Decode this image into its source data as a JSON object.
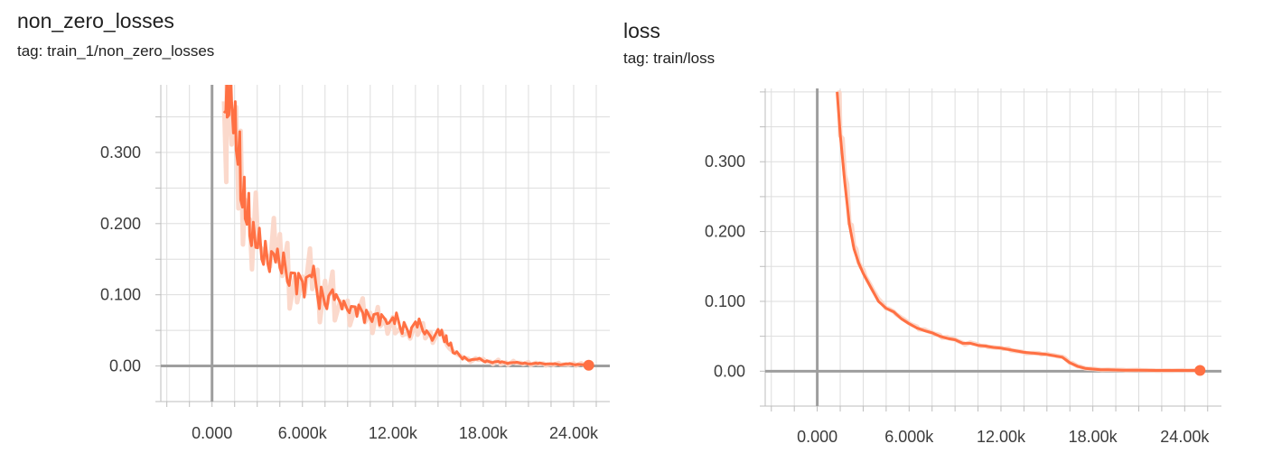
{
  "chart_data": [
    {
      "type": "line",
      "title": "non_zero_losses",
      "subtitle": "tag: train_1/non_zero_losses",
      "xlabel": "",
      "ylabel": "",
      "xlim": [
        -3400,
        26400
      ],
      "ylim": [
        -0.05,
        0.395
      ],
      "x_ticks": [
        0,
        6000,
        12000,
        18000,
        24000
      ],
      "x_tick_labels": [
        "0.000",
        "6.000k",
        "12.00k",
        "18.00k",
        "24.00k"
      ],
      "y_ticks": [
        0,
        0.1,
        0.2,
        0.3
      ],
      "y_tick_labels": [
        "0.00",
        "0.100",
        "0.200",
        "0.300"
      ],
      "grid": true,
      "series_color": "#ff7043",
      "raw_color": "#fbd5c7",
      "series": [
        {
          "x": [
            800,
            1000,
            1300,
            1600,
            1900,
            2200,
            2500,
            2900,
            3300,
            3700,
            4100,
            4500,
            5000,
            5500,
            6000,
            6500,
            7000,
            7500,
            8000,
            8500,
            9000,
            9500,
            10000,
            10500,
            11000,
            11500,
            12000,
            12500,
            13000,
            13500,
            14000,
            14500,
            15000,
            15300,
            15600,
            16000,
            16500,
            17000,
            17500,
            18000,
            18500,
            19000,
            19500,
            20000,
            20500,
            21000,
            21500,
            22000,
            22500,
            23000,
            23500,
            24000,
            24500,
            25000
          ],
          "y": [
            0.39,
            0.37,
            0.34,
            0.29,
            0.25,
            0.22,
            0.2,
            0.18,
            0.155,
            0.15,
            0.16,
            0.14,
            0.13,
            0.12,
            0.11,
            0.125,
            0.1,
            0.09,
            0.1,
            0.085,
            0.075,
            0.08,
            0.07,
            0.065,
            0.07,
            0.06,
            0.065,
            0.055,
            0.05,
            0.06,
            0.045,
            0.04,
            0.05,
            0.04,
            0.03,
            0.02,
            0.012,
            0.008,
            0.01,
            0.007,
            0.005,
            0.006,
            0.004,
            0.005,
            0.004,
            0.003,
            0.004,
            0.003,
            0.003,
            0.002,
            0.003,
            0.002,
            0.002,
            0.001
          ]
        }
      ],
      "endpoint": {
        "x": 25000,
        "y": 0.001
      }
    },
    {
      "type": "line",
      "title": "loss",
      "subtitle": "tag: train/loss",
      "xlabel": "",
      "ylabel": "",
      "xlim": [
        -3400,
        26400
      ],
      "ylim": [
        -0.05,
        0.405
      ],
      "x_ticks": [
        0,
        6000,
        12000,
        18000,
        24000
      ],
      "x_tick_labels": [
        "0.000",
        "6.000k",
        "12.00k",
        "18.00k",
        "24.00k"
      ],
      "y_ticks": [
        0,
        0.1,
        0.2,
        0.3
      ],
      "y_tick_labels": [
        "0.00",
        "0.100",
        "0.200",
        "0.300"
      ],
      "grid": true,
      "series_color": "#ff7043",
      "raw_color": "#fbd5c7",
      "series": [
        {
          "x": [
            1300,
            1500,
            1800,
            2100,
            2400,
            2700,
            3000,
            3500,
            4000,
            4500,
            5000,
            5500,
            6000,
            6500,
            7000,
            7500,
            8000,
            8500,
            9000,
            9500,
            10000,
            10500,
            11000,
            11500,
            12000,
            12500,
            13000,
            13500,
            14000,
            14500,
            15000,
            15500,
            16000,
            16500,
            17000,
            17500,
            18000,
            18500,
            19000,
            20000,
            21000,
            22000,
            23000,
            24000,
            25000
          ],
          "y": [
            0.4,
            0.34,
            0.27,
            0.21,
            0.175,
            0.155,
            0.14,
            0.12,
            0.1,
            0.09,
            0.085,
            0.075,
            0.068,
            0.062,
            0.058,
            0.055,
            0.05,
            0.047,
            0.045,
            0.04,
            0.04,
            0.037,
            0.036,
            0.034,
            0.033,
            0.031,
            0.029,
            0.027,
            0.026,
            0.025,
            0.024,
            0.022,
            0.02,
            0.012,
            0.007,
            0.004,
            0.003,
            0.002,
            0.002,
            0.0015,
            0.0015,
            0.001,
            0.001,
            0.001,
            0.001
          ]
        }
      ],
      "endpoint": {
        "x": 25000,
        "y": 0.001
      }
    }
  ]
}
